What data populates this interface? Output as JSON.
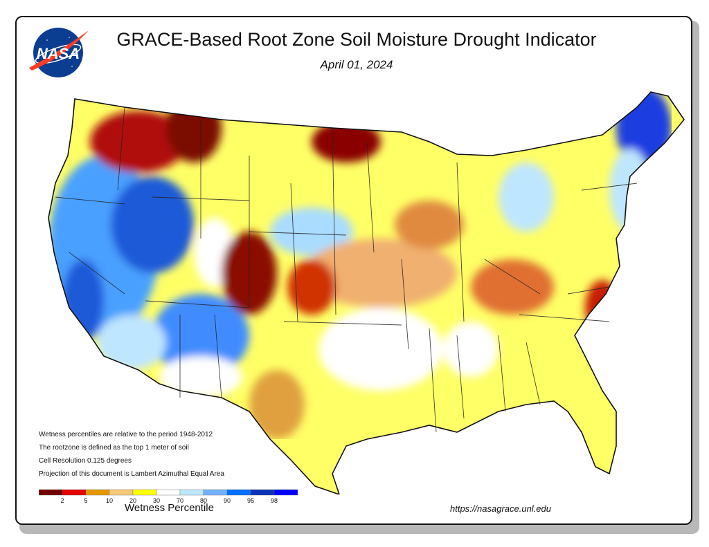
{
  "header": {
    "title": "GRACE-Based Root Zone Soil  Moisture Drought Indicator",
    "date": "April 01, 2024",
    "logo_text": "NASA"
  },
  "notes": [
    "Wetness percentiles are relative to the period 1948-2012",
    "The rootzone is defined as the top 1 meter of soil",
    "Cell Resolution 0.125 degrees",
    "Projection of this document is Lambert Azimuthal Equal Area"
  ],
  "legend": {
    "title": "Wetness Percentile",
    "tick_labels": [
      "2",
      "5",
      "10",
      "20",
      "30",
      "70",
      "80",
      "90",
      "95",
      "98"
    ],
    "colors": [
      "#730000",
      "#e60000",
      "#e69800",
      "#f5ca7a",
      "#ffff00",
      "#ffffff",
      "#bee8ff",
      "#73b2ff",
      "#0070ff",
      "#0a32b4",
      "#0000ff"
    ]
  },
  "url": "https://nasagrace.unl.edu",
  "colors": {
    "frame": "#111111",
    "shadow": "#b8b8b8",
    "nasa_blue": "#0b3d91",
    "nasa_red": "#fc3d21"
  }
}
